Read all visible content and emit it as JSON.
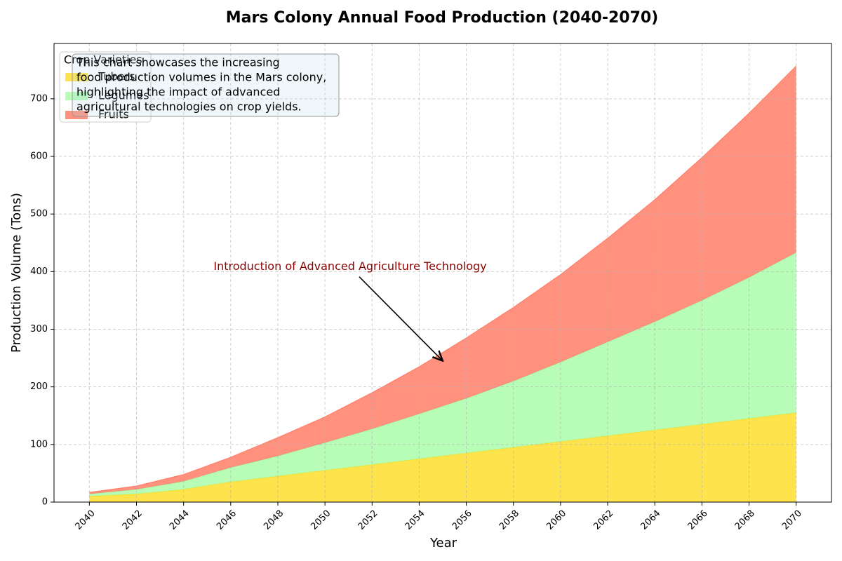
{
  "chart_data": {
    "type": "stacked_area",
    "title": "Mars Colony Annual Food Production (2040-2070)",
    "x_label": "Year",
    "y_label": "Production Volume (Tons)",
    "x": [
      2040,
      2042,
      2044,
      2046,
      2048,
      2050,
      2052,
      2054,
      2056,
      2058,
      2060,
      2062,
      2064,
      2066,
      2068,
      2070
    ],
    "series": [
      {
        "name": "Tubers",
        "color": "#FFD700",
        "values": [
          10,
          14,
          22,
          35,
          45,
          55,
          65,
          75,
          85,
          95,
          105,
          115,
          125,
          135,
          145,
          155
        ]
      },
      {
        "name": "Legumes",
        "color": "#98FB98",
        "values": [
          4,
          8,
          14,
          25,
          35,
          48,
          62,
          78,
          95,
          115,
          138,
          163,
          188,
          215,
          245,
          278
        ]
      },
      {
        "name": "Fruits",
        "color": "#FF6347",
        "values": [
          3,
          6,
          12,
          18,
          32,
          45,
          63,
          82,
          105,
          128,
          152,
          180,
          212,
          248,
          285,
          324
        ]
      }
    ],
    "xlim": [
      2038.5,
      2071.5
    ],
    "xticks": [
      2040,
      2042,
      2044,
      2046,
      2048,
      2050,
      2052,
      2054,
      2056,
      2058,
      2060,
      2062,
      2064,
      2066,
      2068,
      2070
    ],
    "ylim": [
      0,
      796
    ],
    "yticks": [
      0,
      100,
      200,
      300,
      400,
      500,
      600,
      700
    ],
    "grid": true,
    "legend_title": "Crop Varieties",
    "legend_position": "upper-left",
    "annotation": {
      "text": "Introduction of Advanced Agriculture Technology",
      "xy": [
        2055,
        245
      ]
    },
    "note": [
      "This chart showcases the increasing",
      "food production volumes in the Mars colony,",
      "highlighting the impact of advanced",
      "agricultural technologies on crop yields."
    ]
  }
}
